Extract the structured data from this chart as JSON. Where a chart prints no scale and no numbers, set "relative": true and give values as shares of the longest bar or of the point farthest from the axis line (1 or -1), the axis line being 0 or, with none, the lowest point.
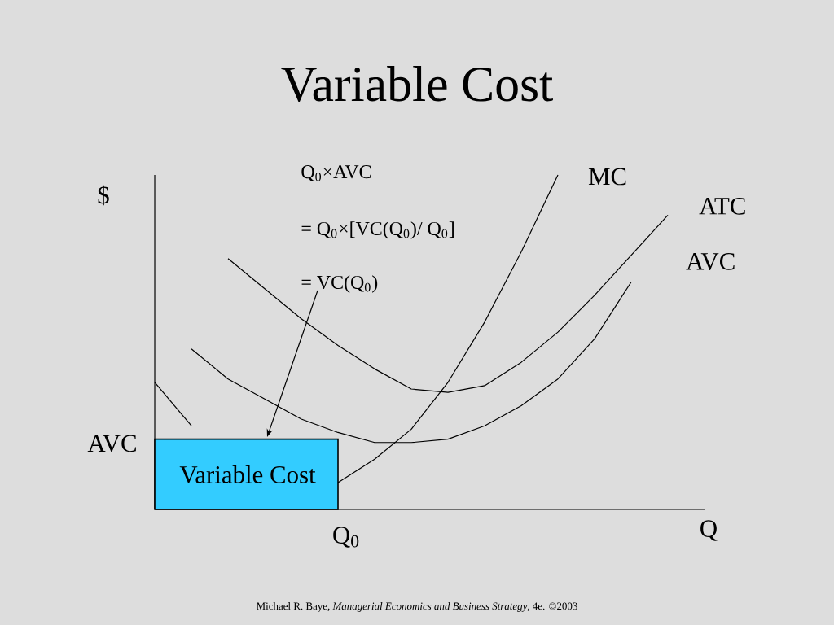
{
  "chart_data": {
    "type": "line",
    "title": "Variable Cost",
    "xlabel": "Q",
    "ylabel": "$",
    "relative": true,
    "categories": [
      null,
      null,
      null,
      null,
      null,
      null,
      null,
      null,
      null,
      null,
      null,
      null,
      null,
      null,
      null,
      null
    ],
    "series": [
      {
        "name": "MC",
        "color": "#000000",
        "values": [
          null,
          null,
          null,
          null,
          null,
          0.08,
          0.15,
          0.24,
          0.38,
          0.56,
          0.77,
          1.0,
          null,
          null,
          null,
          null
        ]
      },
      {
        "name": "ATC",
        "color": "#000000",
        "values": [
          null,
          null,
          0.75,
          0.66,
          0.57,
          0.49,
          0.42,
          0.36,
          0.35,
          0.37,
          0.44,
          0.53,
          0.64,
          0.76,
          0.88,
          null
        ]
      },
      {
        "name": "AVC",
        "color": "#000000",
        "values": [
          null,
          0.48,
          0.39,
          0.33,
          0.27,
          0.23,
          0.2,
          0.2,
          0.21,
          0.25,
          0.31,
          0.39,
          0.51,
          0.68,
          null,
          null
        ]
      },
      {
        "color": "#000000",
        "values": [
          0.38,
          0.25,
          null,
          null,
          null,
          null,
          null,
          null,
          null,
          null,
          null,
          null,
          null,
          null,
          null,
          null
        ]
      },
      {
        "type": "area",
        "color": "#33ccff",
        "values": [
          0.21,
          0.21,
          0.21,
          0.21,
          0.21,
          0.21,
          null,
          null,
          null,
          null,
          null,
          null,
          null,
          null,
          null,
          null
        ]
      }
    ],
    "annotations": [
      "Q$_{0}$×AVC",
      "= Q$_{0}$×[VC(Q$_{0}$)/ Q$_{0}$]",
      "= VC(Q$_{0}$)",
      "AVC",
      "Q$_{0}$",
      "Variable Cost",
      "Michael R. Baye, *Managerial Economics and Business Strategy*, 4e. ©2003"
    ]
  }
}
